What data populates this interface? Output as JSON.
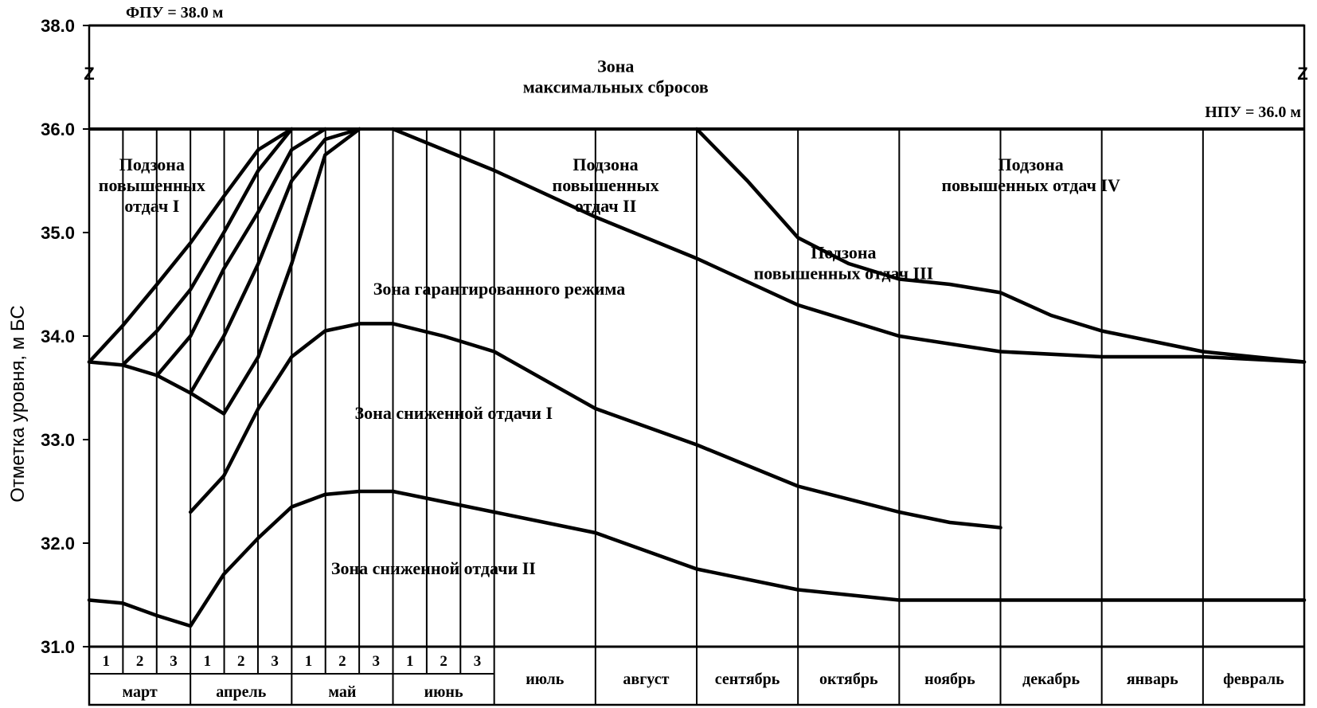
{
  "chart_data": {
    "type": "line",
    "ylabel": "Отметка уровня, м БС",
    "ylim": [
      31.0,
      38.0
    ],
    "y_ticks": [
      "31.0",
      "32.0",
      "33.0",
      "34.0",
      "35.0",
      "36.0",
      "38.0"
    ],
    "y_break_symbol": "Z",
    "reference_lines": [
      {
        "label": "ФПУ = 38.0 м",
        "value": 38.0
      },
      {
        "label": "НПУ = 36.0 м",
        "value": 36.0
      }
    ],
    "months": [
      {
        "label": "март",
        "decades": [
          "1",
          "2",
          "3"
        ]
      },
      {
        "label": "апрель",
        "decades": [
          "1",
          "2",
          "3"
        ]
      },
      {
        "label": "май",
        "decades": [
          "1",
          "2",
          "3"
        ]
      },
      {
        "label": "июнь",
        "decades": [
          "1",
          "2",
          "3"
        ]
      },
      {
        "label": "июль",
        "decades": []
      },
      {
        "label": "август",
        "decades": []
      },
      {
        "label": "сентябрь",
        "decades": []
      },
      {
        "label": "октябрь",
        "decades": []
      },
      {
        "label": "ноябрь",
        "decades": []
      },
      {
        "label": "декабрь",
        "decades": []
      },
      {
        "label": "январь",
        "decades": []
      },
      {
        "label": "февраль",
        "decades": []
      }
    ],
    "x_unit": "month index (0 = start of March, 12 = end of February)",
    "zones": [
      {
        "label": [
          "Зона",
          "максимальных сбросов"
        ],
        "anchor": [
          5.2,
          37.1
        ]
      },
      {
        "label": [
          "Подзона",
          "повышенных",
          "отдач I"
        ],
        "anchor": [
          0.62,
          35.6
        ]
      },
      {
        "label": [
          "Подзона",
          "повышенных",
          "отдач II"
        ],
        "anchor": [
          5.1,
          35.6
        ]
      },
      {
        "label": [
          "Подзона",
          "повышенных отдач III"
        ],
        "anchor": [
          7.45,
          34.75
        ]
      },
      {
        "label": [
          "Подзона",
          "повышенных отдач IV"
        ],
        "anchor": [
          9.3,
          35.6
        ]
      },
      {
        "label": [
          "Зона гарантированного режима"
        ],
        "anchor": [
          4.05,
          34.4
        ]
      },
      {
        "label": [
          "Зона сниженной отдачи I"
        ],
        "anchor": [
          3.6,
          33.2
        ]
      },
      {
        "label": [
          "Зона сниженной отдачи II"
        ],
        "anchor": [
          3.4,
          31.7
        ]
      }
    ],
    "series": [
      {
        "name": "upper-dispatch-1",
        "points": [
          [
            0,
            33.75
          ],
          [
            0.33,
            34.1
          ],
          [
            0.67,
            34.5
          ],
          [
            1,
            34.9
          ],
          [
            1.33,
            35.35
          ],
          [
            1.67,
            35.8
          ],
          [
            2,
            36.0
          ]
        ]
      },
      {
        "name": "upper-dispatch-2",
        "points": [
          [
            0.33,
            33.72
          ],
          [
            0.67,
            34.05
          ],
          [
            1,
            34.45
          ],
          [
            1.33,
            35.0
          ],
          [
            1.67,
            35.6
          ],
          [
            2,
            36.0
          ]
        ]
      },
      {
        "name": "upper-dispatch-3",
        "points": [
          [
            0.67,
            33.62
          ],
          [
            1,
            34.0
          ],
          [
            1.33,
            34.65
          ],
          [
            1.67,
            35.2
          ],
          [
            2,
            35.8
          ],
          [
            2.33,
            36.0
          ]
        ]
      },
      {
        "name": "upper-dispatch-4",
        "points": [
          [
            1,
            33.45
          ],
          [
            1.33,
            34.0
          ],
          [
            1.67,
            34.7
          ],
          [
            2,
            35.5
          ],
          [
            2.33,
            35.9
          ],
          [
            2.67,
            36.0
          ]
        ]
      },
      {
        "name": "upper-dispatch-5",
        "points": [
          [
            1.33,
            33.25
          ],
          [
            1.67,
            33.8
          ],
          [
            2,
            34.7
          ],
          [
            2.33,
            35.75
          ],
          [
            2.67,
            36.0
          ]
        ]
      },
      {
        "name": "guaranteed-upper",
        "points": [
          [
            0,
            33.75
          ],
          [
            0.33,
            33.72
          ],
          [
            0.67,
            33.62
          ],
          [
            1,
            33.45
          ],
          [
            1.33,
            33.25
          ]
        ]
      },
      {
        "name": "guaranteed-summer",
        "points": [
          [
            3,
            36.0
          ],
          [
            3.5,
            35.8
          ],
          [
            4,
            35.6
          ],
          [
            5,
            35.15
          ],
          [
            6,
            34.75
          ],
          [
            7,
            34.3
          ],
          [
            8,
            34.0
          ],
          [
            9,
            33.85
          ],
          [
            10,
            33.8
          ],
          [
            11,
            33.8
          ],
          [
            12,
            33.75
          ]
        ]
      },
      {
        "name": "increased-III-IV-boundary",
        "points": [
          [
            6,
            36.0
          ],
          [
            6.5,
            35.5
          ],
          [
            7,
            34.95
          ],
          [
            7.5,
            34.7
          ],
          [
            8,
            34.55
          ],
          [
            8.5,
            34.5
          ],
          [
            9,
            34.42
          ],
          [
            9.5,
            34.2
          ],
          [
            10,
            34.05
          ],
          [
            10.5,
            33.95
          ],
          [
            11,
            33.85
          ],
          [
            12,
            33.75
          ]
        ]
      },
      {
        "name": "reduced-I-boundary",
        "points": [
          [
            1,
            32.3
          ],
          [
            1.33,
            32.65
          ],
          [
            1.67,
            33.3
          ],
          [
            2,
            33.8
          ],
          [
            2.33,
            34.05
          ],
          [
            2.67,
            34.12
          ],
          [
            3,
            34.12
          ],
          [
            3.5,
            34.0
          ],
          [
            4,
            33.85
          ],
          [
            5,
            33.3
          ],
          [
            6,
            32.95
          ],
          [
            7,
            32.55
          ],
          [
            8,
            32.3
          ],
          [
            8.5,
            32.2
          ],
          [
            9,
            32.15
          ]
        ]
      },
      {
        "name": "reduced-II-boundary",
        "points": [
          [
            0,
            31.45
          ],
          [
            0.33,
            31.42
          ],
          [
            0.67,
            31.3
          ],
          [
            1,
            31.2
          ],
          [
            1.33,
            31.7
          ],
          [
            1.67,
            32.05
          ],
          [
            2,
            32.35
          ],
          [
            2.33,
            32.47
          ],
          [
            2.67,
            32.5
          ],
          [
            3,
            32.5
          ],
          [
            3.5,
            32.4
          ],
          [
            4,
            32.3
          ],
          [
            5,
            32.1
          ],
          [
            6,
            31.75
          ],
          [
            7,
            31.55
          ],
          [
            8,
            31.45
          ],
          [
            9,
            31.45
          ],
          [
            10,
            31.45
          ],
          [
            11,
            31.45
          ],
          [
            12,
            31.45
          ]
        ]
      }
    ]
  }
}
